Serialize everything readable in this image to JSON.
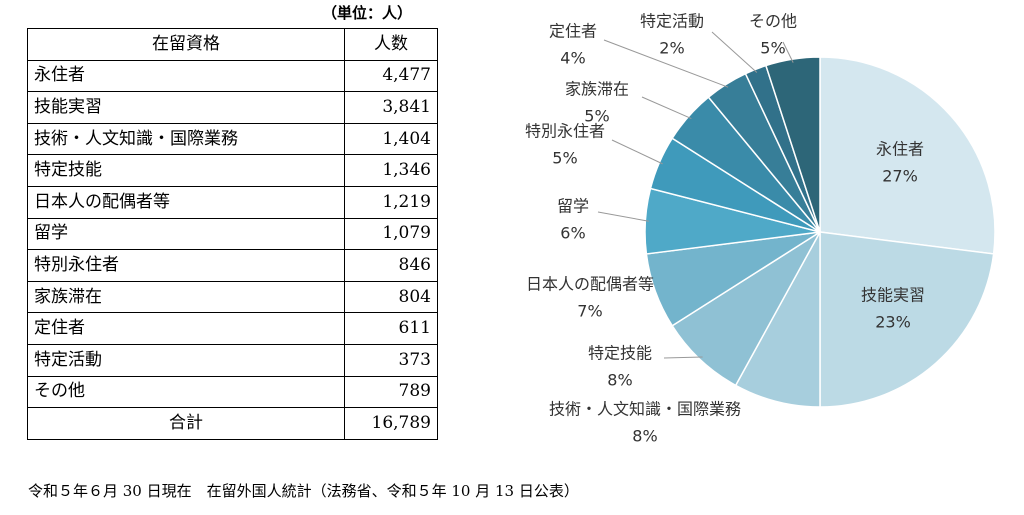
{
  "unit": "（単位：人）",
  "table": {
    "header": [
      "在留資格",
      "人数"
    ],
    "rows": [
      [
        "永住者",
        "4,477"
      ],
      [
        "技能実習",
        "3,841"
      ],
      [
        "技術・人文知識・国際業務",
        "1,404"
      ],
      [
        "特定技能",
        "1,346"
      ],
      [
        "日本人の配偶者等",
        "1,219"
      ],
      [
        "留学",
        "1,079"
      ],
      [
        "特別永住者",
        "846"
      ],
      [
        "家族滞在",
        "804"
      ],
      [
        "定住者",
        "611"
      ],
      [
        "特定活動",
        "373"
      ],
      [
        "その他",
        "789"
      ]
    ],
    "total": [
      "合計",
      "16,789"
    ]
  },
  "chart_data": {
    "type": "pie",
    "categories": [
      "永住者",
      "技能実習",
      "技術・人文知識・国際業務",
      "特定技能",
      "日本人の配偶者等",
      "留学",
      "特別永住者",
      "家族滞在",
      "定住者",
      "特定活動",
      "その他"
    ],
    "values": [
      27,
      23,
      8,
      8,
      7,
      6,
      5,
      5,
      4,
      2,
      5
    ],
    "value_labels": [
      "27%",
      "23%",
      "8%",
      "8%",
      "7%",
      "6%",
      "5%",
      "5%",
      "4%",
      "2%",
      "5%"
    ],
    "colors": [
      "#d4e7ef",
      "#bcdae5",
      "#a7cedd",
      "#8fc1d4",
      "#73b4cc",
      "#4fa9c8",
      "#3f9abb",
      "#3a8ba9",
      "#377e98",
      "#31718a",
      "#2d6678"
    ]
  },
  "footnote": "令和５年６月 30 日現在　在留外国人統計（法務省、令和５年 10 月 13 日公表）"
}
